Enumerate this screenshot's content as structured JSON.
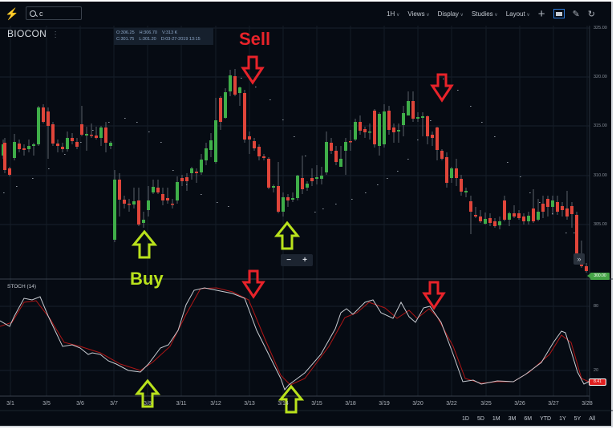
{
  "topbar": {
    "logo_icon": "lightning-bolt-icon",
    "search": {
      "value": "c",
      "icon": "search-icon"
    },
    "interval": "1H",
    "menus": [
      "Views",
      "Display",
      "Studies",
      "Layout"
    ],
    "icons": [
      "plus-icon",
      "chat-overlay-icon",
      "pencil-icon",
      "reset-icon"
    ]
  },
  "chart": {
    "symbol": "BIOCON",
    "ohlc": {
      "open": "O:306.25",
      "high": "H:306.70",
      "volume": "V:313 K",
      "close": "C:301.75",
      "low": "L:301.20",
      "date": "D:03-27-2019 13:15"
    },
    "price_axis": [
      "325.00",
      "320.00",
      "315.00",
      "310.00",
      "305.00"
    ],
    "last_price_tag": "300.00",
    "zoom_controls": {
      "minus": "−",
      "plus": "+"
    },
    "expand_icon": "»"
  },
  "stoch": {
    "label": "STOCH (14)",
    "axis": [
      "80",
      "20"
    ],
    "value_tag": "8.41"
  },
  "x_axis": [
    "3/1",
    "3/5",
    "3/6",
    "3/7",
    "3/8",
    "3/11",
    "3/12",
    "3/13",
    "3/14",
    "3/15",
    "3/18",
    "3/19",
    "3/20",
    "3/22",
    "3/25",
    "3/26",
    "3/27",
    "3/28"
  ],
  "range_buttons": [
    "1D",
    "5D",
    "1M",
    "3M",
    "6M",
    "YTD",
    "1Y",
    "5Y",
    "All"
  ],
  "annotations": {
    "sell_label": "Sell",
    "buy_label": "Buy",
    "colors": {
      "sell": "#e8232a",
      "buy": "#b9e21c",
      "up": "#3fae49",
      "down": "#e0453a"
    }
  }
}
